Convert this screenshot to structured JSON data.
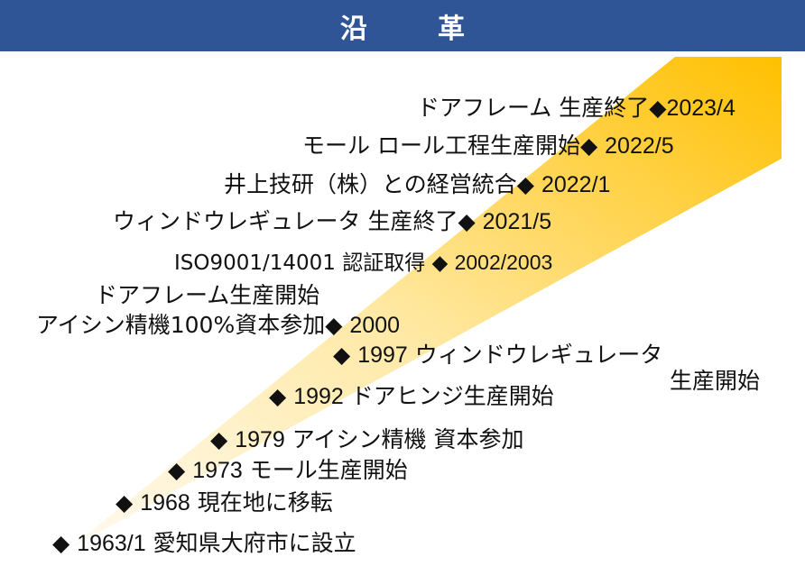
{
  "header": {
    "title": "沿　革"
  },
  "timeline": [
    {
      "id": "1963",
      "left_text": "",
      "date": "1963/1",
      "event": "愛知県大府市に設立"
    },
    {
      "id": "1968",
      "left_text": "",
      "date": "1968",
      "event": "現在地に移転"
    },
    {
      "id": "1973",
      "left_text": "",
      "date": "1973",
      "event": "モール生産開始"
    },
    {
      "id": "1979",
      "left_text": "",
      "date": "1979",
      "event": "アイシン精機 資本参加"
    },
    {
      "id": "1992",
      "left_text": "",
      "date": "1992",
      "event": "ドアヒンジ生産開始"
    },
    {
      "id": "1997",
      "left_text": "",
      "date": "1997",
      "event": "ウィンドウレギュレータ",
      "event_line2": "生産開始"
    },
    {
      "id": "2000",
      "left_text": "ドアフレーム生産開始",
      "left_text2": "アイシン精機100%資本参加",
      "date": "2000"
    },
    {
      "id": "2002",
      "left_text": "ISO9001/14001 認証取得",
      "date": "2002/2003"
    },
    {
      "id": "2021-5",
      "left_text": "ウィンドウレギュレータ 生産終了",
      "date": "2021/5"
    },
    {
      "id": "2022-1",
      "left_text": "井上技研（株）との経営統合",
      "date": "2022/1"
    },
    {
      "id": "2022-5",
      "left_text": "モール ロール工程生産開始",
      "date": "2022/5"
    },
    {
      "id": "2023-4",
      "left_text": "ドアフレーム 生産終了",
      "date": "2023/4"
    }
  ],
  "marker": "◆",
  "colors": {
    "header_bg": "#2f5597",
    "wedge_light": "#fff7dc",
    "wedge_dark": "#ffc000"
  }
}
